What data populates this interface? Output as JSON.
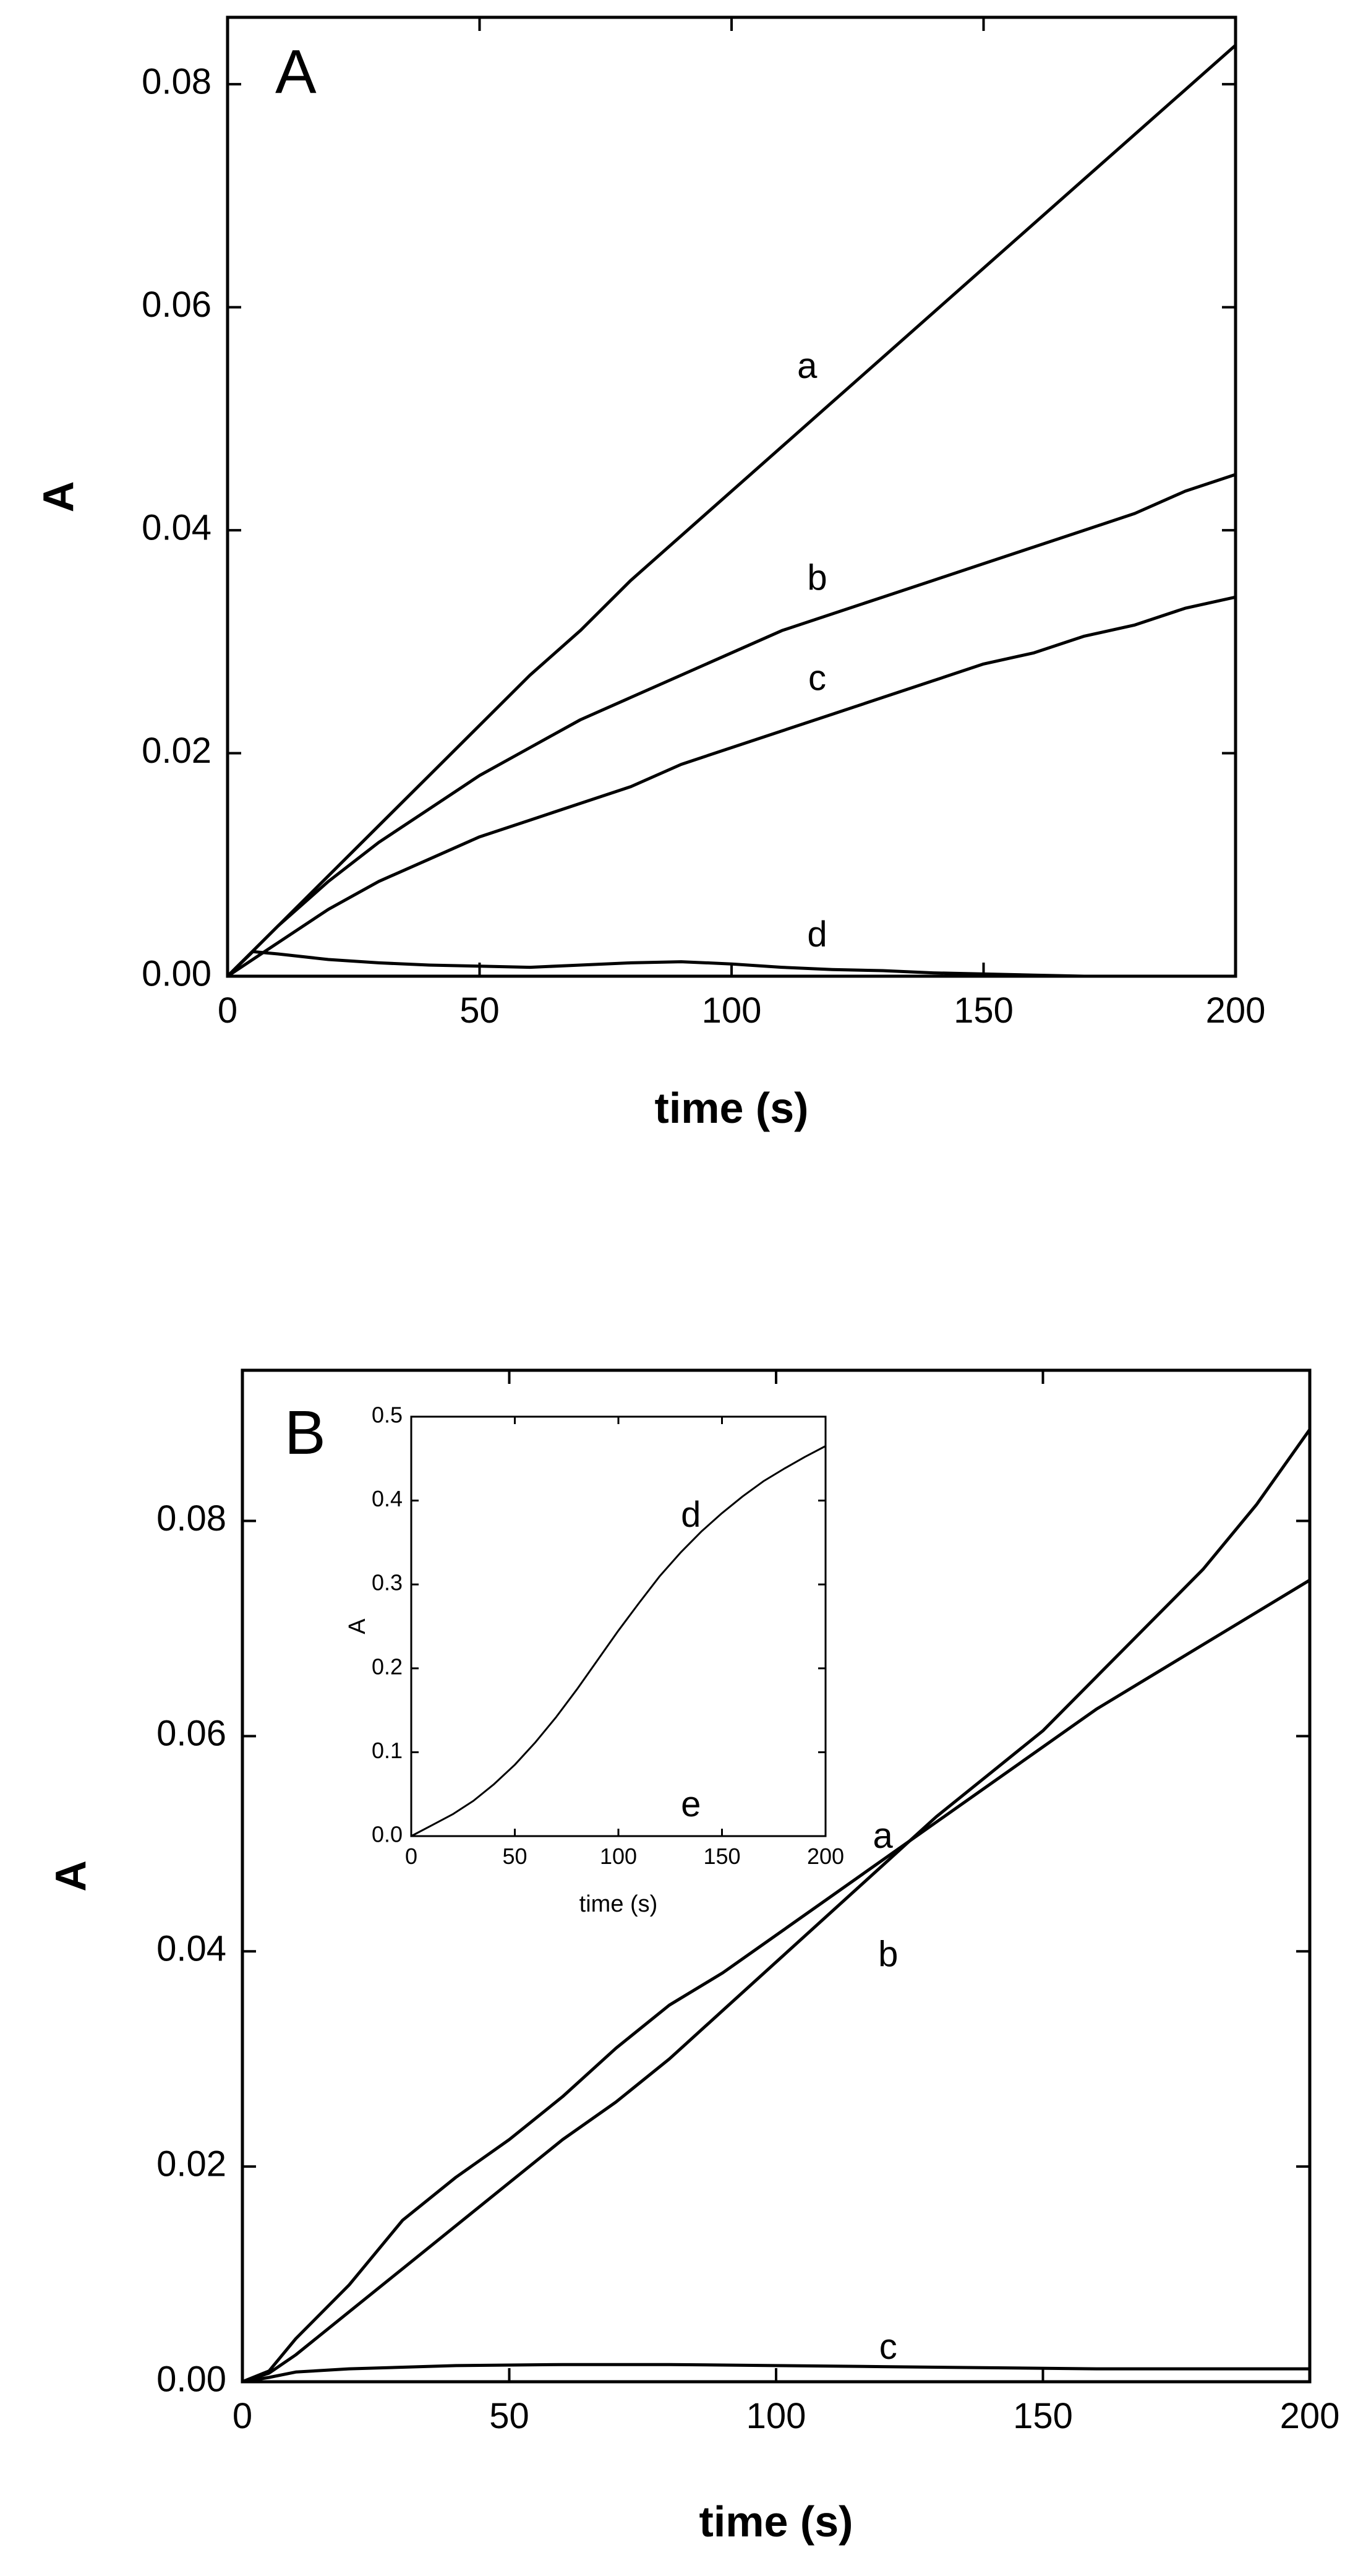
{
  "chart_data": [
    {
      "id": "panel-A",
      "type": "line",
      "panel_label": "A",
      "xlabel": "time (s)",
      "ylabel": "A",
      "xlim": [
        0,
        200
      ],
      "ylim": [
        0,
        0.086
      ],
      "x_ticks": [
        0,
        50,
        100,
        150,
        200
      ],
      "x_tick_labels": [
        "0",
        "50",
        "100",
        "150",
        "200"
      ],
      "y_ticks": [
        0,
        0.02,
        0.04,
        0.06,
        0.08
      ],
      "y_tick_labels": [
        "0.00",
        "0.02",
        "0.04",
        "0.06",
        "0.08"
      ],
      "grid": false,
      "legend": "none",
      "series": [
        {
          "label": "a",
          "label_at": [
            115,
            0.0545
          ],
          "x": [
            0,
            10,
            20,
            30,
            40,
            50,
            60,
            70,
            80,
            90,
            100,
            110,
            120,
            130,
            140,
            150,
            160,
            170,
            180,
            190,
            200
          ],
          "y": [
            0,
            0.0045,
            0.009,
            0.0135,
            0.018,
            0.0225,
            0.027,
            0.031,
            0.0355,
            0.0395,
            0.0435,
            0.0475,
            0.0515,
            0.0555,
            0.0595,
            0.0635,
            0.0675,
            0.0715,
            0.0755,
            0.0795,
            0.0835
          ]
        },
        {
          "label": "b",
          "label_at": [
            117,
            0.0355
          ],
          "x": [
            0,
            10,
            20,
            30,
            40,
            50,
            60,
            70,
            80,
            90,
            100,
            110,
            120,
            130,
            140,
            150,
            160,
            170,
            180,
            190,
            200
          ],
          "y": [
            0,
            0.0045,
            0.0085,
            0.012,
            0.015,
            0.018,
            0.0205,
            0.023,
            0.025,
            0.027,
            0.029,
            0.031,
            0.0325,
            0.034,
            0.0355,
            0.037,
            0.0385,
            0.04,
            0.0415,
            0.0435,
            0.045
          ]
        },
        {
          "label": "c",
          "label_at": [
            117,
            0.0265
          ],
          "x": [
            0,
            10,
            20,
            30,
            40,
            50,
            60,
            70,
            80,
            90,
            100,
            110,
            120,
            130,
            140,
            150,
            160,
            170,
            180,
            190,
            200
          ],
          "y": [
            0,
            0.003,
            0.006,
            0.0085,
            0.0105,
            0.0125,
            0.014,
            0.0155,
            0.017,
            0.019,
            0.0205,
            0.022,
            0.0235,
            0.025,
            0.0265,
            0.028,
            0.029,
            0.0305,
            0.0315,
            0.033,
            0.034
          ]
        },
        {
          "label": "d",
          "label_at": [
            117,
            0.0035
          ],
          "x": [
            0,
            5,
            10,
            20,
            30,
            40,
            50,
            60,
            70,
            80,
            90,
            100,
            110,
            120,
            130,
            140,
            150,
            160,
            170
          ],
          "y": [
            0,
            0.0022,
            0.002,
            0.0015,
            0.0012,
            0.001,
            0.0009,
            0.0008,
            0.001,
            0.0012,
            0.0013,
            0.0011,
            0.0008,
            0.0006,
            0.0005,
            0.0003,
            0.0002,
            0.0001,
            0
          ]
        }
      ]
    },
    {
      "id": "panel-B",
      "type": "line",
      "panel_label": "B",
      "xlabel": "time (s)",
      "ylabel": "A",
      "xlim": [
        0,
        200
      ],
      "ylim": [
        0,
        0.094
      ],
      "x_ticks": [
        0,
        50,
        100,
        150,
        200
      ],
      "x_tick_labels": [
        "0",
        "50",
        "100",
        "150",
        "200"
      ],
      "y_ticks": [
        0,
        0.02,
        0.04,
        0.06,
        0.08
      ],
      "y_tick_labels": [
        "0.00",
        "0.02",
        "0.04",
        "0.06",
        "0.08"
      ],
      "grid": false,
      "legend": "none",
      "series": [
        {
          "label": "a",
          "label_at": [
            120,
            0.0505
          ],
          "x": [
            0,
            5,
            10,
            20,
            30,
            40,
            50,
            60,
            70,
            80,
            90,
            100,
            110,
            120,
            130,
            140,
            150,
            160,
            170,
            180,
            190,
            200
          ],
          "y": [
            0,
            0.001,
            0.004,
            0.009,
            0.015,
            0.019,
            0.0225,
            0.0265,
            0.031,
            0.035,
            0.038,
            0.0415,
            0.045,
            0.0485,
            0.052,
            0.0555,
            0.059,
            0.0625,
            0.0655,
            0.0685,
            0.0715,
            0.0745
          ]
        },
        {
          "label": "b",
          "label_at": [
            121,
            0.0395
          ],
          "x": [
            0,
            5,
            10,
            20,
            30,
            40,
            50,
            60,
            70,
            80,
            90,
            100,
            110,
            120,
            130,
            140,
            150,
            160,
            170,
            180,
            190,
            200
          ],
          "y": [
            0,
            0.0008,
            0.0025,
            0.0065,
            0.0105,
            0.0145,
            0.0185,
            0.0225,
            0.026,
            0.03,
            0.0345,
            0.039,
            0.0435,
            0.048,
            0.0525,
            0.0565,
            0.0605,
            0.0655,
            0.0705,
            0.0755,
            0.0815,
            0.0885
          ]
        },
        {
          "label": "c",
          "label_at": [
            121,
            0.003
          ],
          "x": [
            0,
            5,
            10,
            20,
            40,
            60,
            80,
            100,
            120,
            140,
            160,
            180,
            200
          ],
          "y": [
            0,
            0.0004,
            0.0009,
            0.0012,
            0.0015,
            0.0016,
            0.0016,
            0.0015,
            0.0014,
            0.0013,
            0.0012,
            0.0012,
            0.0012
          ]
        }
      ]
    },
    {
      "id": "panel-B-inset",
      "type": "line",
      "xlabel": "time (s)",
      "ylabel": "A",
      "xlim": [
        0,
        200
      ],
      "ylim": [
        0,
        0.5
      ],
      "x_ticks": [
        0,
        50,
        100,
        150,
        200
      ],
      "x_tick_labels": [
        "0",
        "50",
        "100",
        "150",
        "200"
      ],
      "y_ticks": [
        0,
        0.1,
        0.2,
        0.3,
        0.4,
        0.5
      ],
      "y_tick_labels": [
        "0.0",
        "0.1",
        "0.2",
        "0.3",
        "0.4",
        "0.5"
      ],
      "grid": false,
      "legend": "none",
      "series": [
        {
          "label": "d",
          "label_at": [
            135,
            0.38
          ],
          "x": [
            0,
            10,
            20,
            30,
            40,
            50,
            60,
            70,
            80,
            90,
            100,
            110,
            120,
            130,
            140,
            150,
            160,
            170,
            180,
            190,
            200
          ],
          "y": [
            0,
            0.013,
            0.026,
            0.042,
            0.062,
            0.085,
            0.112,
            0.142,
            0.175,
            0.21,
            0.245,
            0.278,
            0.31,
            0.338,
            0.363,
            0.385,
            0.405,
            0.423,
            0.438,
            0.452,
            0.465
          ]
        },
        {
          "label": "e",
          "label_at": [
            135,
            0.035
          ],
          "x": [],
          "y": []
        }
      ]
    }
  ]
}
